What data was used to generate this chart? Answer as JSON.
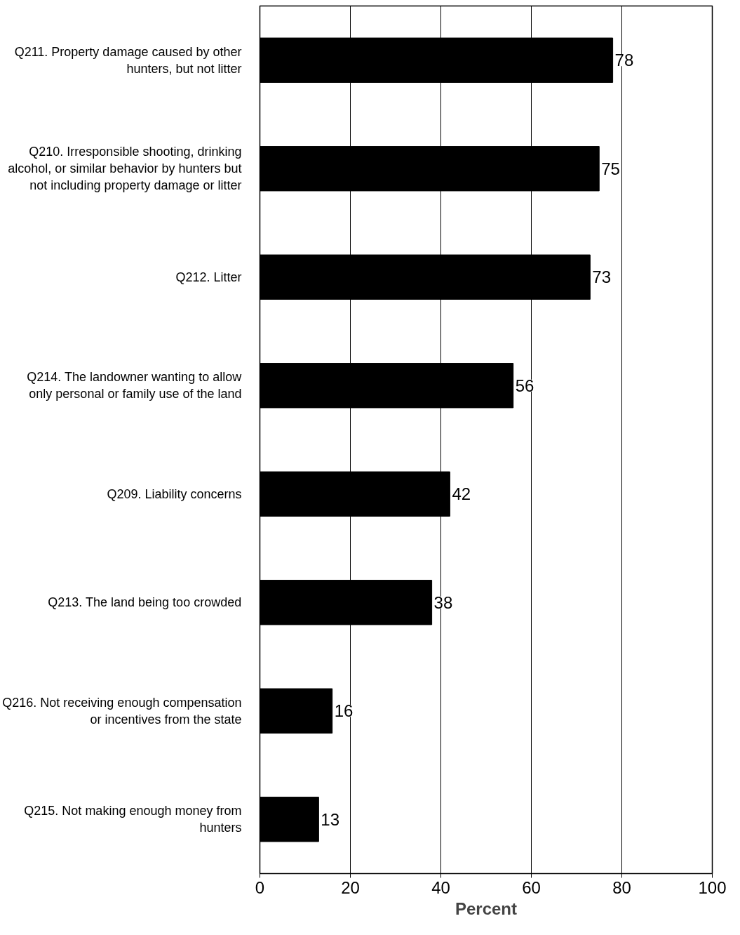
{
  "chart_data": {
    "type": "bar",
    "orientation": "horizontal",
    "xlabel": "Percent",
    "categories": [
      "Q211. Property damage caused by other\nhunters, but not litter",
      "Q210. Irresponsible shooting, drinking\nalcohol, or similar behavior by hunters but\nnot including property damage or litter",
      "Q212. Litter",
      "Q214. The landowner wanting to allow\nonly personal or family use of the land",
      "Q209. Liability concerns",
      "Q213. The land being too crowded",
      "Q216. Not receiving enough compensation\nor incentives from the state",
      "Q215. Not making enough money from\nhunters"
    ],
    "values": [
      78,
      75,
      73,
      56,
      42,
      38,
      16,
      13
    ],
    "color": "#000000",
    "xlim": [
      0,
      100
    ],
    "xticks": [
      0,
      20,
      40,
      60,
      80,
      100
    ],
    "grid": "x",
    "data_labels": true
  }
}
